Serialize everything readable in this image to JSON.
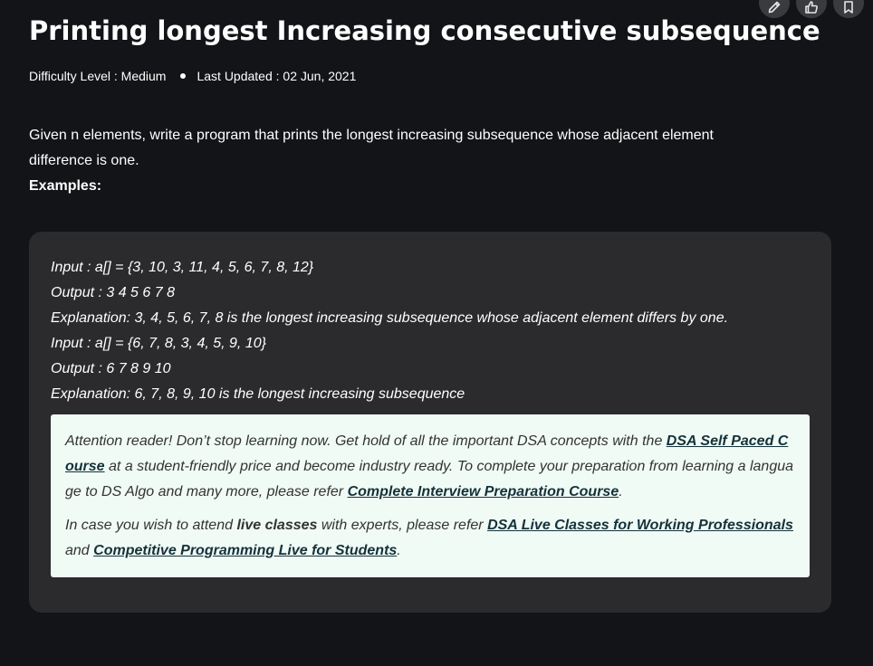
{
  "article": {
    "title": "Printing longest Increasing consecutive subsequence",
    "meta": {
      "difficulty": "Difficulty Level : Medium",
      "updated": "Last Updated : 02 Jun, 2021"
    },
    "intro_text": "Given n elements, write a program that prints the longest increasing subsequence whose adjacent element difference is one.",
    "examples_label": "Examples:"
  },
  "examples": [
    "Input : a[] = {3, 10, 3, 11, 4, 5, 6, 7, 8, 12}",
    "Output : 3 4 5 6 7 8",
    "Explanation: 3, 4, 5, 6, 7, 8 is the longest increasing subsequence whose adjacent element differs by one.",
    "Input : a[] = {6, 7, 8, 3, 4, 5, 9, 10}",
    "Output : 6 7 8 9 10",
    "Explanation: 6, 7, 8, 9, 10 is the longest increasing subsequence"
  ],
  "notice": {
    "p1_a": "Attention reader! Don’t stop learning now. Get hold of all the important DSA concepts with the ",
    "p1_link1": "DSA Self Paced Course",
    "p1_b": " at a student-friendly price and become industry ready.  To complete your preparation from learning a language to DS Algo and many more,  please refer ",
    "p1_link2": "Complete Interview Preparation Course",
    "p1_c": ".",
    "p2_a": "In case you wish to attend ",
    "p2_bold": "live classes",
    "p2_b": " with experts, please refer ",
    "p2_link1": "DSA Live Classes for Working Professionals ",
    "p2_c": "and ",
    "p2_link2": "Competitive Programming Live for Students",
    "p2_d": "."
  },
  "toolbar": {
    "icons": [
      "pencil-icon",
      "thumbs-up-icon",
      "bookmark-icon"
    ]
  },
  "colors": {
    "background": "#131417",
    "code_box": "#2b2b2d",
    "notice_bg": "#f0fbf5",
    "notice_link": "#14323a"
  }
}
